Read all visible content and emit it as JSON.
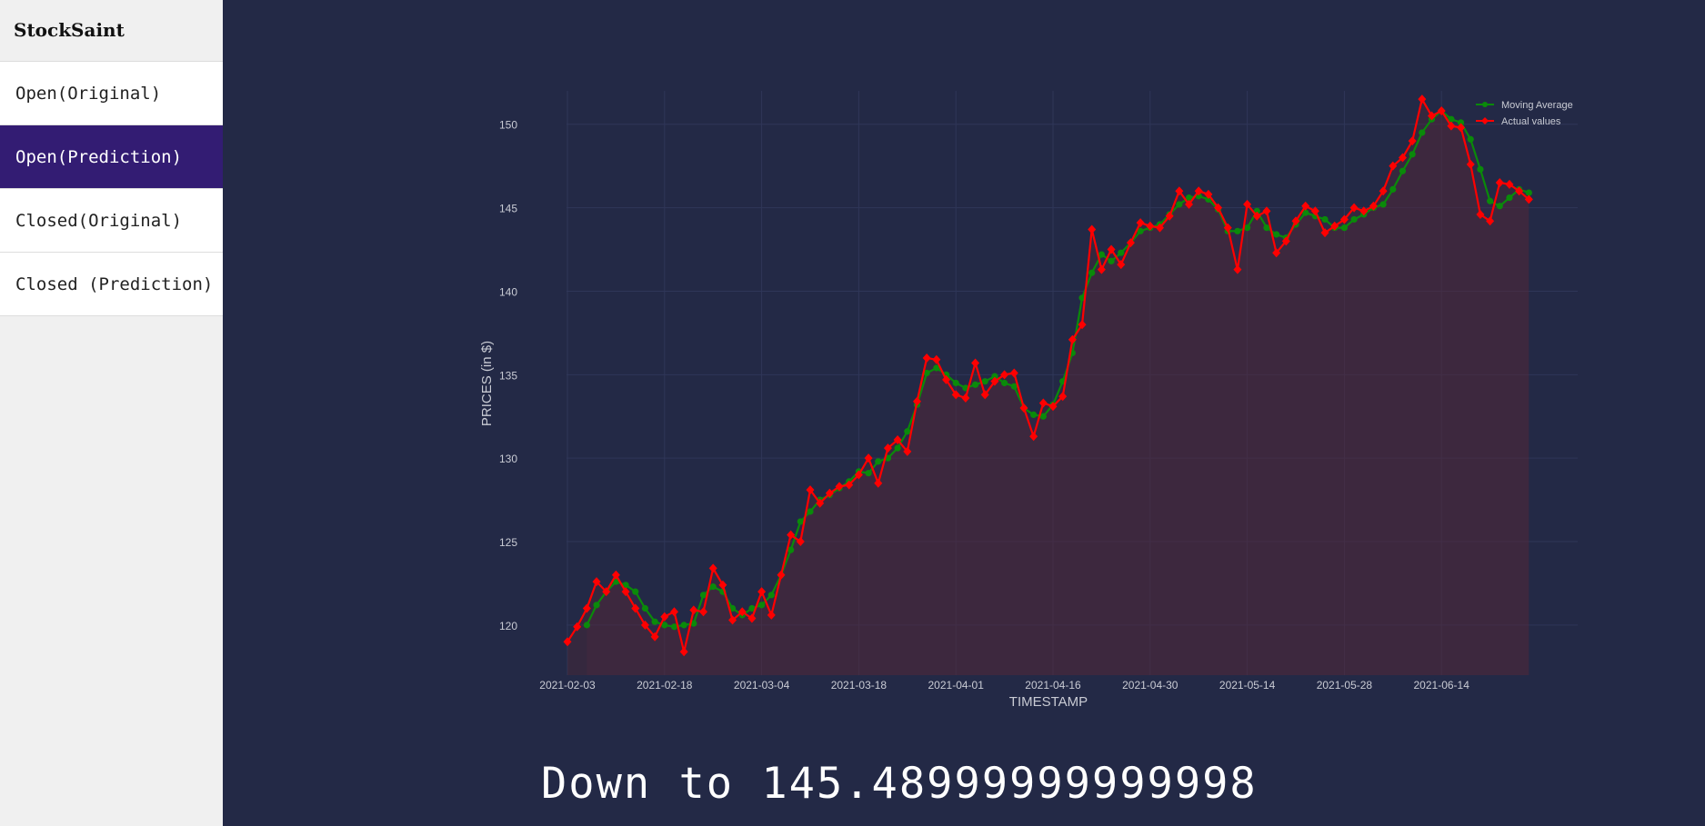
{
  "brand": "StockSaint",
  "nav": [
    {
      "label": "Open(Original)",
      "active": false
    },
    {
      "label": "Open(Prediction)",
      "active": true
    },
    {
      "label": "Closed(Original)",
      "active": false
    },
    {
      "label": "Closed (Prediction)",
      "active": false
    }
  ],
  "caption": "Down to 145.48999999999998",
  "chart_data": {
    "type": "line",
    "title": "",
    "xlabel": "TIMESTAMP",
    "ylabel": "PRICES (in $)",
    "ylim": [
      117,
      152
    ],
    "yticks": [
      120,
      125,
      130,
      135,
      140,
      145,
      150
    ],
    "xticks": [
      "2021-02-03",
      "2021-02-18",
      "2021-03-04",
      "2021-03-18",
      "2021-04-01",
      "2021-04-16",
      "2021-04-30",
      "2021-05-14",
      "2021-05-28",
      "2021-06-14"
    ],
    "grid": true,
    "legend_position": "top-right",
    "area_fill": true,
    "series": [
      {
        "name": "Moving Average",
        "color": "#0a8a0a",
        "marker": "circle",
        "start_index": 2,
        "values": [
          120.0,
          121.2,
          122.0,
          122.6,
          122.4,
          122.0,
          121.0,
          120.2,
          120.0,
          119.9,
          120.0,
          120.1,
          121.8,
          122.3,
          122.0,
          121.0,
          120.6,
          121.0,
          121.2,
          121.8,
          123.0,
          124.5,
          126.2,
          126.8,
          127.5,
          127.8,
          128.2,
          128.6,
          129.2,
          129.1,
          129.8,
          130.0,
          130.6,
          131.6,
          133.2,
          135.1,
          135.4,
          135.0,
          134.5,
          134.2,
          134.4,
          134.6,
          134.9,
          134.5,
          134.3,
          133.0,
          132.6,
          132.5,
          133.2,
          134.6,
          136.3,
          139.6,
          141.1,
          142.2,
          141.8,
          142.3,
          142.9,
          143.6,
          143.8,
          144.0,
          144.6,
          145.2,
          145.6,
          145.7,
          145.5,
          144.9,
          143.6,
          143.6,
          143.8,
          144.8,
          143.8,
          143.4,
          143.2,
          144.0,
          144.7,
          144.5,
          144.3,
          143.8,
          143.8,
          144.3,
          144.6,
          145.0,
          145.2,
          146.1,
          147.2,
          148.2,
          149.5,
          150.3,
          150.8,
          150.3,
          150.1,
          149.1,
          147.3,
          145.4,
          145.1,
          145.6,
          146.1,
          145.9
        ],
        "actual_count_note": ""
      },
      {
        "name": "Actual values",
        "color": "#ff0000",
        "marker": "diamond",
        "start_index": 0,
        "values": [
          119.0,
          119.9,
          121.0,
          122.6,
          122.0,
          123.0,
          122.0,
          121.0,
          120.0,
          119.3,
          120.5,
          120.8,
          118.4,
          120.9,
          120.8,
          123.4,
          122.4,
          120.3,
          120.8,
          120.4,
          122.0,
          120.6,
          123.0,
          125.4,
          125.0,
          128.1,
          127.3,
          127.9,
          128.3,
          128.4,
          129.0,
          130.0,
          128.5,
          130.6,
          131.1,
          130.4,
          133.4,
          136.0,
          135.9,
          134.7,
          133.8,
          133.6,
          135.7,
          133.8,
          134.6,
          135.0,
          135.1,
          133.0,
          131.3,
          133.3,
          133.1,
          133.7,
          137.1,
          138.0,
          143.7,
          141.3,
          142.5,
          141.6,
          142.9,
          144.1,
          143.9,
          143.8,
          144.5,
          146.0,
          145.2,
          146.0,
          145.8,
          145.0,
          143.8,
          141.3,
          145.2,
          144.5,
          144.8,
          142.3,
          143.0,
          144.2,
          145.1,
          144.8,
          143.5,
          143.9,
          144.3,
          145.0,
          144.8,
          145.1,
          146.0,
          147.5,
          148.0,
          149.0,
          151.5,
          150.5,
          150.8,
          149.9,
          149.8,
          147.6,
          144.6,
          144.2,
          146.5,
          146.4,
          146.0,
          145.5
        ]
      }
    ]
  }
}
